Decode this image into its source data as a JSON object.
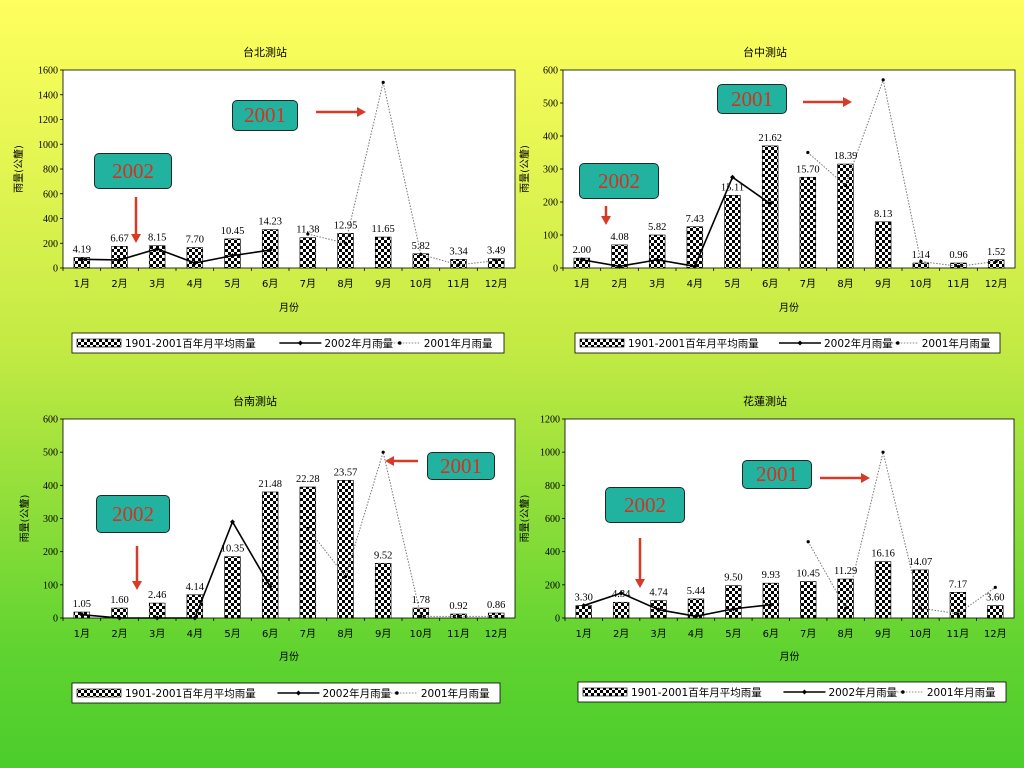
{
  "chart_data": [
    {
      "type": "bar",
      "title": "台北測站",
      "xlabel": "月份",
      "ylabel": "雨量(公釐)",
      "ylim": [
        0,
        1600
      ],
      "yticks": [
        0,
        200,
        400,
        600,
        800,
        1000,
        1200,
        1400,
        1600
      ],
      "categories": [
        "1月",
        "2月",
        "3月",
        "4月",
        "5月",
        "6月",
        "7月",
        "8月",
        "9月",
        "10月",
        "11月",
        "12月"
      ],
      "series": [
        {
          "name": "1901-2001百年月平均雨量",
          "kind": "bar",
          "values": [
            85,
            175,
            180,
            165,
            235,
            310,
            245,
            280,
            250,
            115,
            70,
            75
          ]
        },
        {
          "name": "2002年月雨量",
          "kind": "line",
          "values": [
            70,
            65,
            155,
            40,
            100,
            145,
            null,
            null,
            null,
            null,
            null,
            null
          ]
        },
        {
          "name": "2001年月雨量",
          "kind": "dotted",
          "values": [
            null,
            null,
            null,
            null,
            null,
            null,
            275,
            200,
            1500,
            110,
            25,
            60
          ]
        }
      ],
      "labels": [
        "4.19",
        "6.67",
        "8.15",
        "7.70",
        "10.45",
        "14.23",
        "11.38",
        "12.95",
        "11.65",
        "5.82",
        "3.34",
        "3.49"
      ],
      "legend_position": "bottom",
      "callouts": [
        {
          "text": "2002",
          "arrow": "down"
        },
        {
          "text": "2001",
          "arrow": "right"
        }
      ]
    },
    {
      "type": "bar",
      "title": "台中測站",
      "xlabel": "月份",
      "ylabel": "雨量(公釐)",
      "ylim": [
        0,
        600
      ],
      "yticks": [
        0,
        100,
        200,
        300,
        400,
        500,
        600
      ],
      "categories": [
        "1月",
        "2月",
        "3月",
        "4月",
        "5月",
        "6月",
        "7月",
        "8月",
        "9月",
        "10月",
        "11月",
        "12月"
      ],
      "series": [
        {
          "name": "1901-2001百年月平均雨量",
          "kind": "bar",
          "values": [
            30,
            70,
            100,
            125,
            220,
            370,
            275,
            315,
            140,
            15,
            15,
            25
          ]
        },
        {
          "name": "2002年月雨量",
          "kind": "line",
          "values": [
            25,
            5,
            25,
            5,
            275,
            195,
            null,
            null,
            null,
            null,
            null,
            null
          ]
        },
        {
          "name": "2001年月雨量",
          "kind": "dotted",
          "values": [
            null,
            null,
            null,
            null,
            null,
            null,
            350,
            250,
            570,
            20,
            5,
            20
          ]
        }
      ],
      "labels": [
        "2.00",
        "4.08",
        "5.82",
        "7.43",
        "15.11",
        "21.62",
        "15.70",
        "18.39",
        "8.13",
        "1.14",
        "0.96",
        "1.52"
      ],
      "legend_position": "bottom",
      "callouts": [
        {
          "text": "2002",
          "arrow": "down"
        },
        {
          "text": "2001",
          "arrow": "right"
        }
      ]
    },
    {
      "type": "bar",
      "title": "台南測站",
      "xlabel": "月份",
      "ylabel": "雨量(公釐)",
      "ylim": [
        0,
        600
      ],
      "yticks": [
        0,
        100,
        200,
        300,
        400,
        500,
        600
      ],
      "categories": [
        "1月",
        "2月",
        "3月",
        "4月",
        "5月",
        "6月",
        "7月",
        "8月",
        "9月",
        "10月",
        "11月",
        "12月"
      ],
      "series": [
        {
          "name": "1901-2001百年月平均雨量",
          "kind": "bar",
          "values": [
            18,
            30,
            45,
            70,
            185,
            380,
            395,
            415,
            165,
            30,
            12,
            15
          ]
        },
        {
          "name": "2002年月雨量",
          "kind": "line",
          "values": [
            10,
            0,
            0,
            0,
            290,
            95,
            null,
            null,
            null,
            null,
            null,
            null
          ]
        },
        {
          "name": "2001年月雨量",
          "kind": "dotted",
          "values": [
            null,
            null,
            null,
            null,
            null,
            null,
            270,
            125,
            500,
            5,
            5,
            5
          ]
        }
      ],
      "labels": [
        "1.05",
        "1.60",
        "2.46",
        "4.14",
        "10.35",
        "21.48",
        "22.28",
        "23.57",
        "9.52",
        "1.78",
        "0.92",
        "0.86"
      ],
      "legend_position": "bottom",
      "callouts": [
        {
          "text": "2002",
          "arrow": "down"
        },
        {
          "text": "2001",
          "arrow": "left"
        }
      ]
    },
    {
      "type": "bar",
      "title": "花蓮測站",
      "xlabel": "月份",
      "ylabel": "雨量(公釐)",
      "ylim": [
        0,
        1200
      ],
      "yticks": [
        0,
        200,
        400,
        600,
        800,
        1000,
        1200
      ],
      "categories": [
        "1月",
        "2月",
        "3月",
        "4月",
        "5月",
        "6月",
        "7月",
        "8月",
        "9月",
        "10月",
        "11月",
        "12月"
      ],
      "series": [
        {
          "name": "1901-2001百年月平均雨量",
          "kind": "bar",
          "values": [
            75,
            95,
            105,
            115,
            195,
            210,
            220,
            235,
            340,
            290,
            155,
            75
          ]
        },
        {
          "name": "2002年月雨量",
          "kind": "line",
          "values": [
            75,
            150,
            50,
            10,
            55,
            80,
            null,
            null,
            null,
            null,
            null,
            null
          ]
        },
        {
          "name": "2001年月雨量",
          "kind": "dotted",
          "values": [
            null,
            null,
            null,
            null,
            null,
            null,
            460,
            60,
            1000,
            60,
            25,
            185
          ]
        }
      ],
      "labels": [
        "3.30",
        "4.34",
        "4.74",
        "5.44",
        "9.50",
        "9.93",
        "10.45",
        "11.29",
        "16.16",
        "14.07",
        "7.17",
        "3.60"
      ],
      "legend_position": "bottom",
      "callouts": [
        {
          "text": "2002",
          "arrow": "down"
        },
        {
          "text": "2001",
          "arrow": "right"
        }
      ]
    }
  ]
}
